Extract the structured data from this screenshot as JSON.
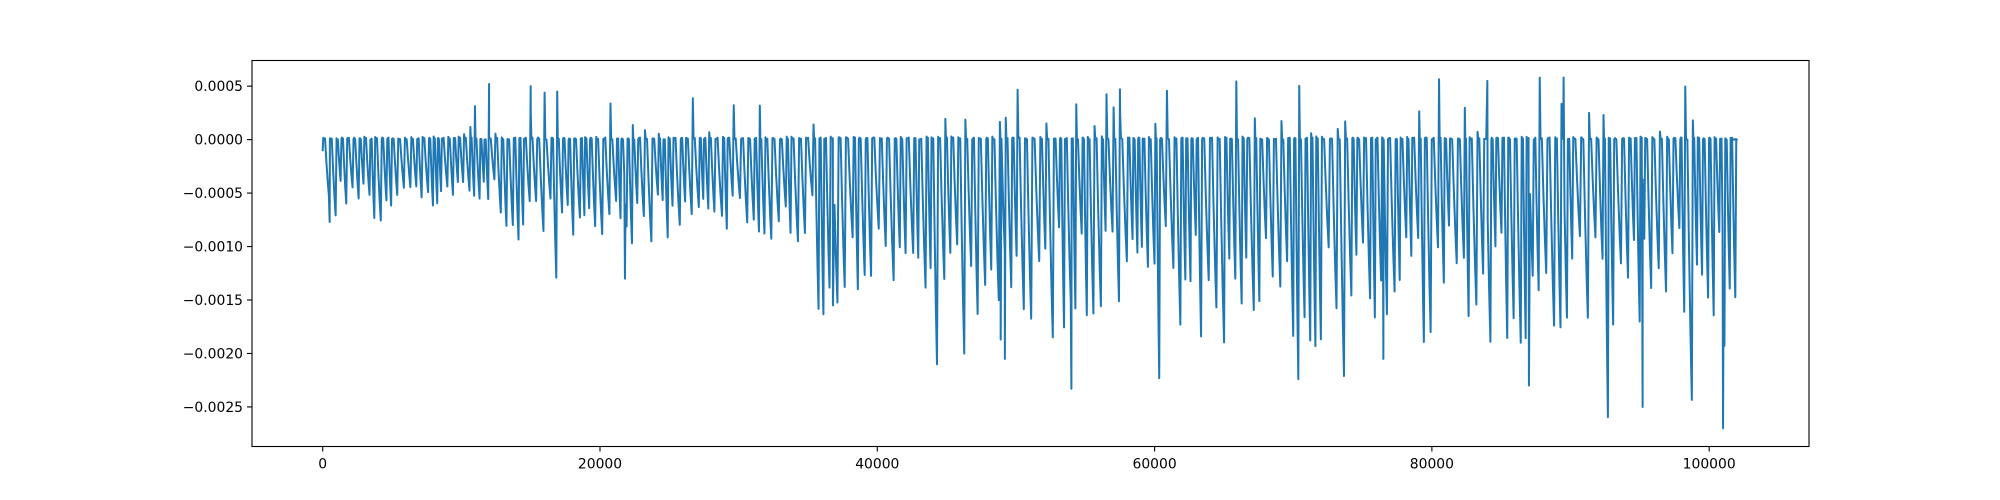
{
  "chart_data": {
    "type": "line",
    "title": "",
    "xlabel": "",
    "ylabel": "",
    "xlim": [
      -5100,
      107200
    ],
    "ylim": [
      -0.00287,
      0.00074
    ],
    "x_ticks": [
      0,
      20000,
      40000,
      60000,
      80000,
      100000
    ],
    "x_tick_labels": [
      "0",
      "20000",
      "40000",
      "60000",
      "80000",
      "100000"
    ],
    "y_ticks": [
      0.0005,
      0.0,
      -0.0005,
      -0.001,
      -0.0015,
      -0.002,
      -0.0025
    ],
    "y_tick_labels": [
      "0.0005",
      "0.0000",
      "−0.0005",
      "−0.0010",
      "−0.0015",
      "−0.0020",
      "−0.0025"
    ],
    "grid": false,
    "legend": "none",
    "series": [
      {
        "color": "#1f77b4",
        "x_start": 0,
        "x_end": 102000,
        "segments": [
          {
            "x_start": 0,
            "x_end": 12000,
            "cycle": 380,
            "trough_min": -0.00035,
            "trough_max": -0.0008,
            "peak_min": 5e-05,
            "peak_max": 0.00035
          },
          {
            "x_start": 12000,
            "x_end": 35000,
            "cycle": 430,
            "trough_min": -0.0005,
            "trough_max": -0.0013,
            "peak_min": 5e-05,
            "peak_max": 0.0005
          },
          {
            "x_start": 35000,
            "x_end": 60000,
            "cycle": 450,
            "trough_min": -0.0008,
            "trough_max": -0.0023,
            "peak_min": 5e-05,
            "peak_max": 0.00047
          },
          {
            "x_start": 60000,
            "x_end": 102000,
            "cycle": 450,
            "trough_min": -0.0008,
            "trough_max": -0.0027,
            "peak_min": 5e-05,
            "peak_max": 0.00058
          }
        ],
        "notable_points": [
          {
            "x": 500,
            "y": -0.00077
          },
          {
            "x": 12000,
            "y": 0.00052
          },
          {
            "x": 15000,
            "y": 0.0005
          },
          {
            "x": 21800,
            "y": -0.0013
          },
          {
            "x": 36800,
            "y": -0.00155
          },
          {
            "x": 48900,
            "y": -0.00187
          },
          {
            "x": 49200,
            "y": -0.00205
          },
          {
            "x": 54000,
            "y": -0.00233
          },
          {
            "x": 57500,
            "y": 0.00047
          },
          {
            "x": 76500,
            "y": -0.00205
          },
          {
            "x": 84000,
            "y": 0.00055
          },
          {
            "x": 87000,
            "y": -0.0023
          },
          {
            "x": 89500,
            "y": 0.00058
          },
          {
            "x": 95200,
            "y": -0.0025
          },
          {
            "x": 101000,
            "y": -0.0027
          }
        ]
      }
    ]
  }
}
